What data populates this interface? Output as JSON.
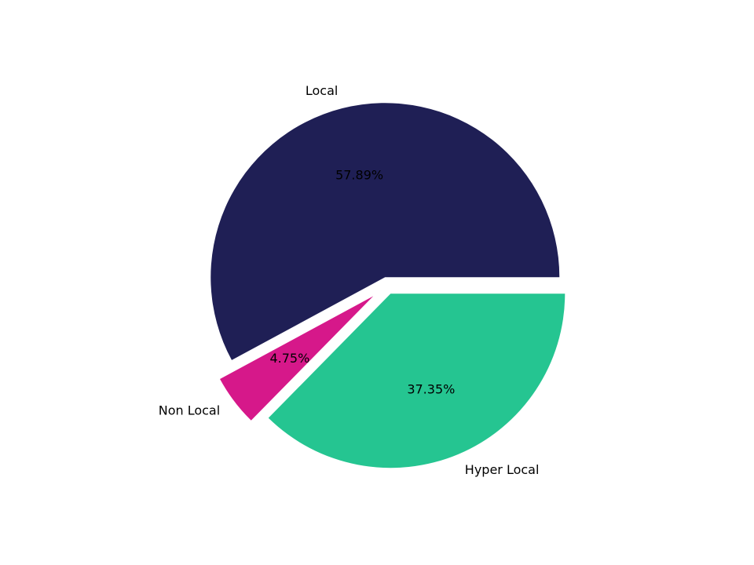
{
  "chart_data": {
    "type": "pie",
    "categories": [
      "Local",
      "Non Local",
      "Hyper Local"
    ],
    "values": [
      57.89,
      4.75,
      37.35
    ],
    "value_labels": [
      "57.89%",
      "4.75%",
      "37.35%"
    ],
    "colors": [
      "#1f1f55",
      "#d6188a",
      "#25c591"
    ],
    "explode": [
      0.05,
      0.1,
      0.05
    ],
    "start_angle": 0
  }
}
